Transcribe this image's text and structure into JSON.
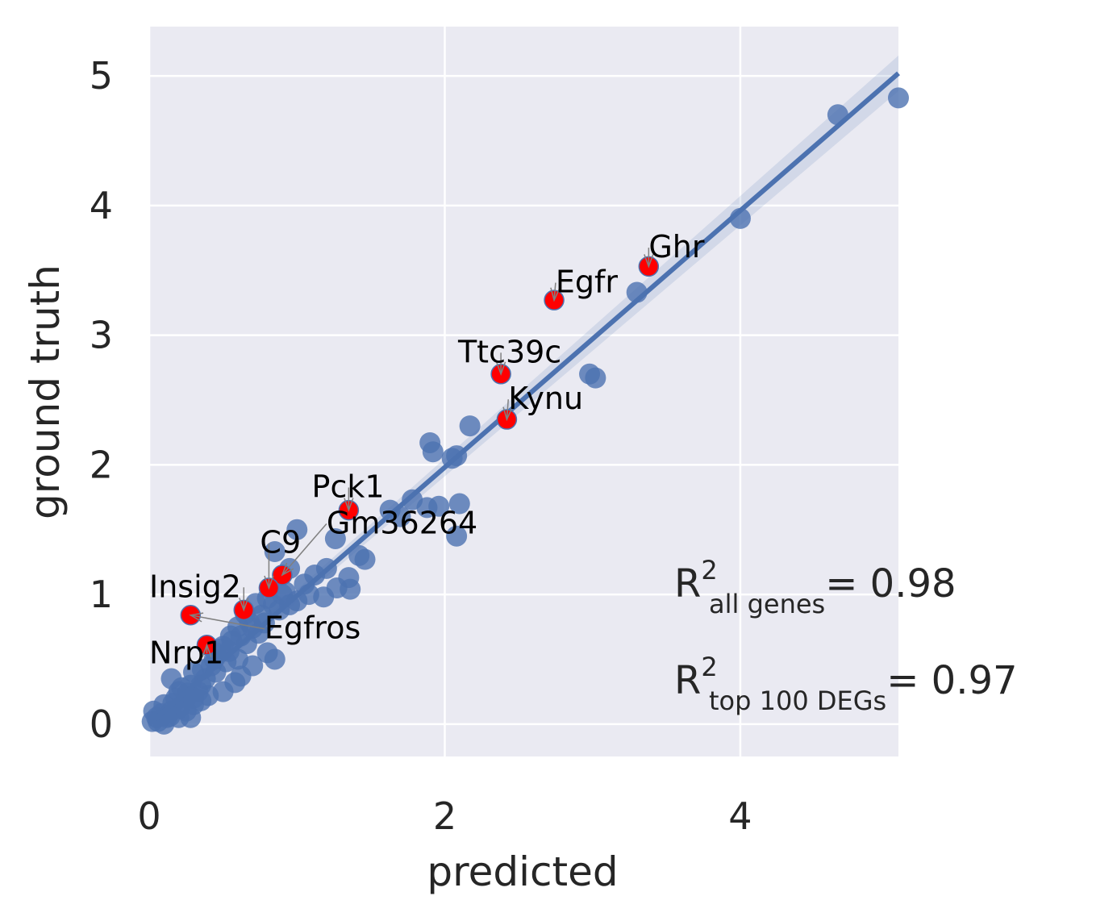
{
  "chart_data": {
    "type": "scatter",
    "title": "",
    "xlabel": "predicted",
    "ylabel": "ground truth",
    "xlim": [
      0,
      5.07
    ],
    "ylim": [
      -0.25,
      5.38
    ],
    "xticks": [
      0,
      2,
      4
    ],
    "yticks": [
      0,
      1,
      2,
      3,
      4,
      5
    ],
    "grid": true,
    "colors": {
      "background": "#EAEAF2",
      "grid": "#FFFFFF",
      "points": "#4C72B0",
      "highlight": "#FF0000",
      "regression": "#4C72B0",
      "arrow": "#808080",
      "text": "#262626"
    },
    "regression_line": {
      "x": [
        0,
        5.07
      ],
      "y": [
        0.0,
        5.02
      ]
    },
    "points": [
      [
        4.66,
        4.7
      ],
      [
        5.07,
        4.83
      ],
      [
        4.0,
        3.9
      ],
      [
        3.3,
        3.33
      ],
      [
        2.98,
        2.7
      ],
      [
        3.02,
        2.67
      ],
      [
        2.17,
        2.3
      ],
      [
        1.9,
        2.17
      ],
      [
        1.92,
        2.1
      ],
      [
        2.05,
        2.05
      ],
      [
        2.08,
        2.07
      ],
      [
        1.63,
        1.65
      ],
      [
        1.7,
        1.6
      ],
      [
        1.78,
        1.73
      ],
      [
        1.88,
        1.67
      ],
      [
        1.96,
        1.68
      ],
      [
        2.1,
        1.7
      ],
      [
        2.08,
        1.45
      ],
      [
        1.0,
        1.5
      ],
      [
        1.26,
        1.43
      ],
      [
        1.42,
        1.3
      ],
      [
        1.46,
        1.27
      ],
      [
        1.35,
        1.13
      ],
      [
        0.85,
        1.33
      ],
      [
        0.95,
        1.2
      ],
      [
        1.12,
        1.15
      ],
      [
        1.2,
        1.2
      ],
      [
        1.05,
        1.08
      ],
      [
        1.27,
        1.05
      ],
      [
        1.36,
        1.04
      ],
      [
        1.18,
        0.98
      ],
      [
        0.9,
        1.0
      ],
      [
        0.8,
        0.97
      ],
      [
        0.72,
        0.93
      ],
      [
        0.65,
        0.85
      ],
      [
        0.6,
        0.75
      ],
      [
        0.55,
        0.68
      ],
      [
        0.5,
        0.6
      ],
      [
        0.45,
        0.55
      ],
      [
        0.6,
        0.5
      ],
      [
        0.7,
        0.45
      ],
      [
        0.8,
        0.55
      ],
      [
        0.85,
        0.5
      ],
      [
        0.3,
        0.4
      ],
      [
        0.35,
        0.3
      ],
      [
        0.45,
        0.4
      ],
      [
        0.58,
        0.32
      ],
      [
        0.62,
        0.37
      ],
      [
        0.15,
        0.35
      ],
      [
        0.2,
        0.25
      ],
      [
        0.25,
        0.2
      ],
      [
        0.3,
        0.15
      ],
      [
        0.35,
        0.18
      ],
      [
        0.4,
        0.22
      ],
      [
        0.5,
        0.25
      ],
      [
        0.1,
        0.15
      ],
      [
        0.15,
        0.1
      ],
      [
        0.2,
        0.12
      ],
      [
        0.05,
        0.05
      ],
      [
        0.08,
        0.08
      ],
      [
        0.02,
        0.02
      ],
      [
        0.12,
        0.05
      ],
      [
        0.03,
        0.1
      ],
      [
        0.18,
        0.2
      ],
      [
        0.28,
        0.3
      ],
      [
        0.38,
        0.35
      ],
      [
        0.22,
        0.28
      ],
      [
        0.33,
        0.25
      ],
      [
        0.42,
        0.45
      ],
      [
        0.52,
        0.48
      ],
      [
        0.48,
        0.58
      ],
      [
        0.66,
        0.62
      ],
      [
        0.74,
        0.7
      ],
      [
        0.78,
        0.78
      ],
      [
        0.88,
        0.88
      ],
      [
        0.68,
        0.78
      ],
      [
        0.56,
        0.64
      ],
      [
        0.95,
        0.92
      ],
      [
        1.0,
        0.95
      ],
      [
        1.08,
        1.0
      ],
      [
        0.06,
        0.02
      ],
      [
        0.1,
        0.0
      ],
      [
        0.14,
        0.06
      ],
      [
        0.25,
        0.1
      ],
      [
        0.28,
        0.05
      ],
      [
        0.3,
        0.2
      ],
      [
        0.2,
        0.05
      ],
      [
        0.16,
        0.16
      ],
      [
        0.26,
        0.24
      ],
      [
        0.36,
        0.42
      ],
      [
        0.44,
        0.5
      ],
      [
        0.54,
        0.56
      ],
      [
        0.62,
        0.68
      ],
      [
        0.7,
        0.74
      ],
      [
        0.76,
        0.84
      ],
      [
        0.84,
        0.92
      ],
      [
        0.92,
        1.02
      ]
    ],
    "highlighted": [
      {
        "label": "Ghr",
        "x": 3.38,
        "y": 3.53
      },
      {
        "label": "Egfr",
        "x": 2.74,
        "y": 3.27
      },
      {
        "label": "Ttc39c",
        "x": 2.38,
        "y": 2.7
      },
      {
        "label": "Kynu",
        "x": 2.42,
        "y": 2.35
      },
      {
        "label": "Pck1",
        "x": 1.35,
        "y": 1.65
      },
      {
        "label": "Gm36264",
        "x": 0.9,
        "y": 1.15
      },
      {
        "label": "C9",
        "x": 0.81,
        "y": 1.05
      },
      {
        "label": "Insig2",
        "x": 0.64,
        "y": 0.88
      },
      {
        "label": "Egfros",
        "x": 0.28,
        "y": 0.84
      },
      {
        "label": "Nrp1",
        "x": 0.39,
        "y": 0.61
      }
    ],
    "annotations": [
      {
        "label": "Ghr",
        "text_x": 3.38,
        "text_y": 3.6
      },
      {
        "label": "Egfr",
        "text_x": 2.75,
        "text_y": 3.33
      },
      {
        "label": "Ttc39c",
        "text_x": 2.09,
        "text_y": 2.79
      },
      {
        "label": "Kynu",
        "text_x": 2.43,
        "text_y": 2.43
      },
      {
        "label": "Pck1",
        "text_x": 1.1,
        "text_y": 1.75
      },
      {
        "label": "Gm36264",
        "text_x": 1.2,
        "text_y": 1.47
      },
      {
        "label": "C9",
        "text_x": 0.75,
        "text_y": 1.32
      },
      {
        "label": "Insig2",
        "text_x": 0.0,
        "text_y": 0.98
      },
      {
        "label": "Egfros",
        "text_x": 0.78,
        "text_y": 0.66
      },
      {
        "label": "Nrp1",
        "text_x": 0.0,
        "text_y": 0.47
      }
    ],
    "r2_all": {
      "prefix": "R",
      "sup": "2",
      "sub": "all genes",
      "value": "= 0.98"
    },
    "r2_top": {
      "prefix": "R",
      "sup": "2",
      "sub": "top 100 DEGs",
      "value": "= 0.97"
    }
  }
}
